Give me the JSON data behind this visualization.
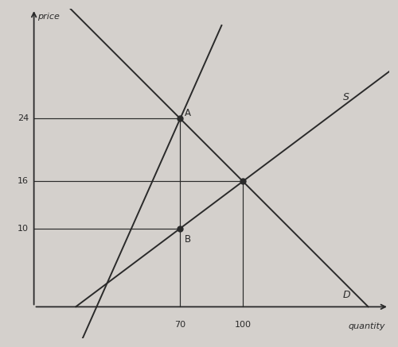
{
  "xlabel": "quantity",
  "ylabel": "price",
  "background_color": "#d4d0cc",
  "line_color": "#2a2a2a",
  "supply_label": "S",
  "demand_label": "D",
  "equilibrium": [
    100,
    16
  ],
  "point_A": [
    70,
    24
  ],
  "point_B": [
    70,
    10
  ],
  "price_ticks": [
    10,
    16,
    24
  ],
  "qty_ticks": [
    70,
    100
  ],
  "xlim": [
    0,
    170
  ],
  "ylim": [
    0,
    38
  ],
  "eq_price": 16,
  "eq_qty": 100,
  "tax_qty": 70,
  "price_A": 24,
  "price_B": 10,
  "s_slope": 0.2,
  "s_intercept": -4,
  "d_slope": -0.267,
  "d_intercept": 42.7,
  "steep_slope": 0.7,
  "steep_intercept": -25
}
